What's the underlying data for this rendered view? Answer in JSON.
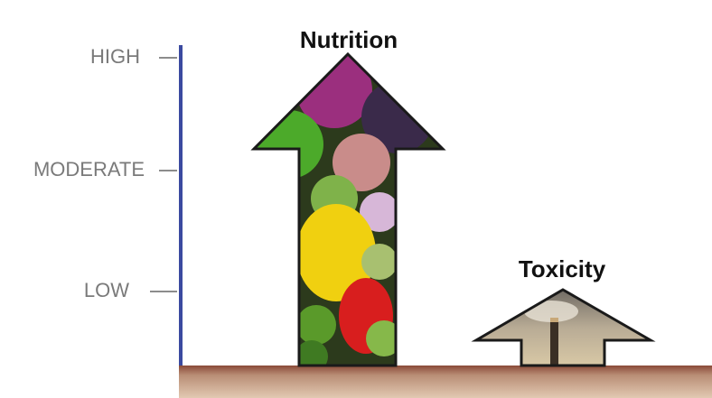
{
  "scale": {
    "labels": [
      "HIGH",
      "MODERATE",
      "LOW"
    ]
  },
  "arrows": [
    {
      "label": "Nutrition"
    },
    {
      "label": "Toxicity"
    }
  ]
}
